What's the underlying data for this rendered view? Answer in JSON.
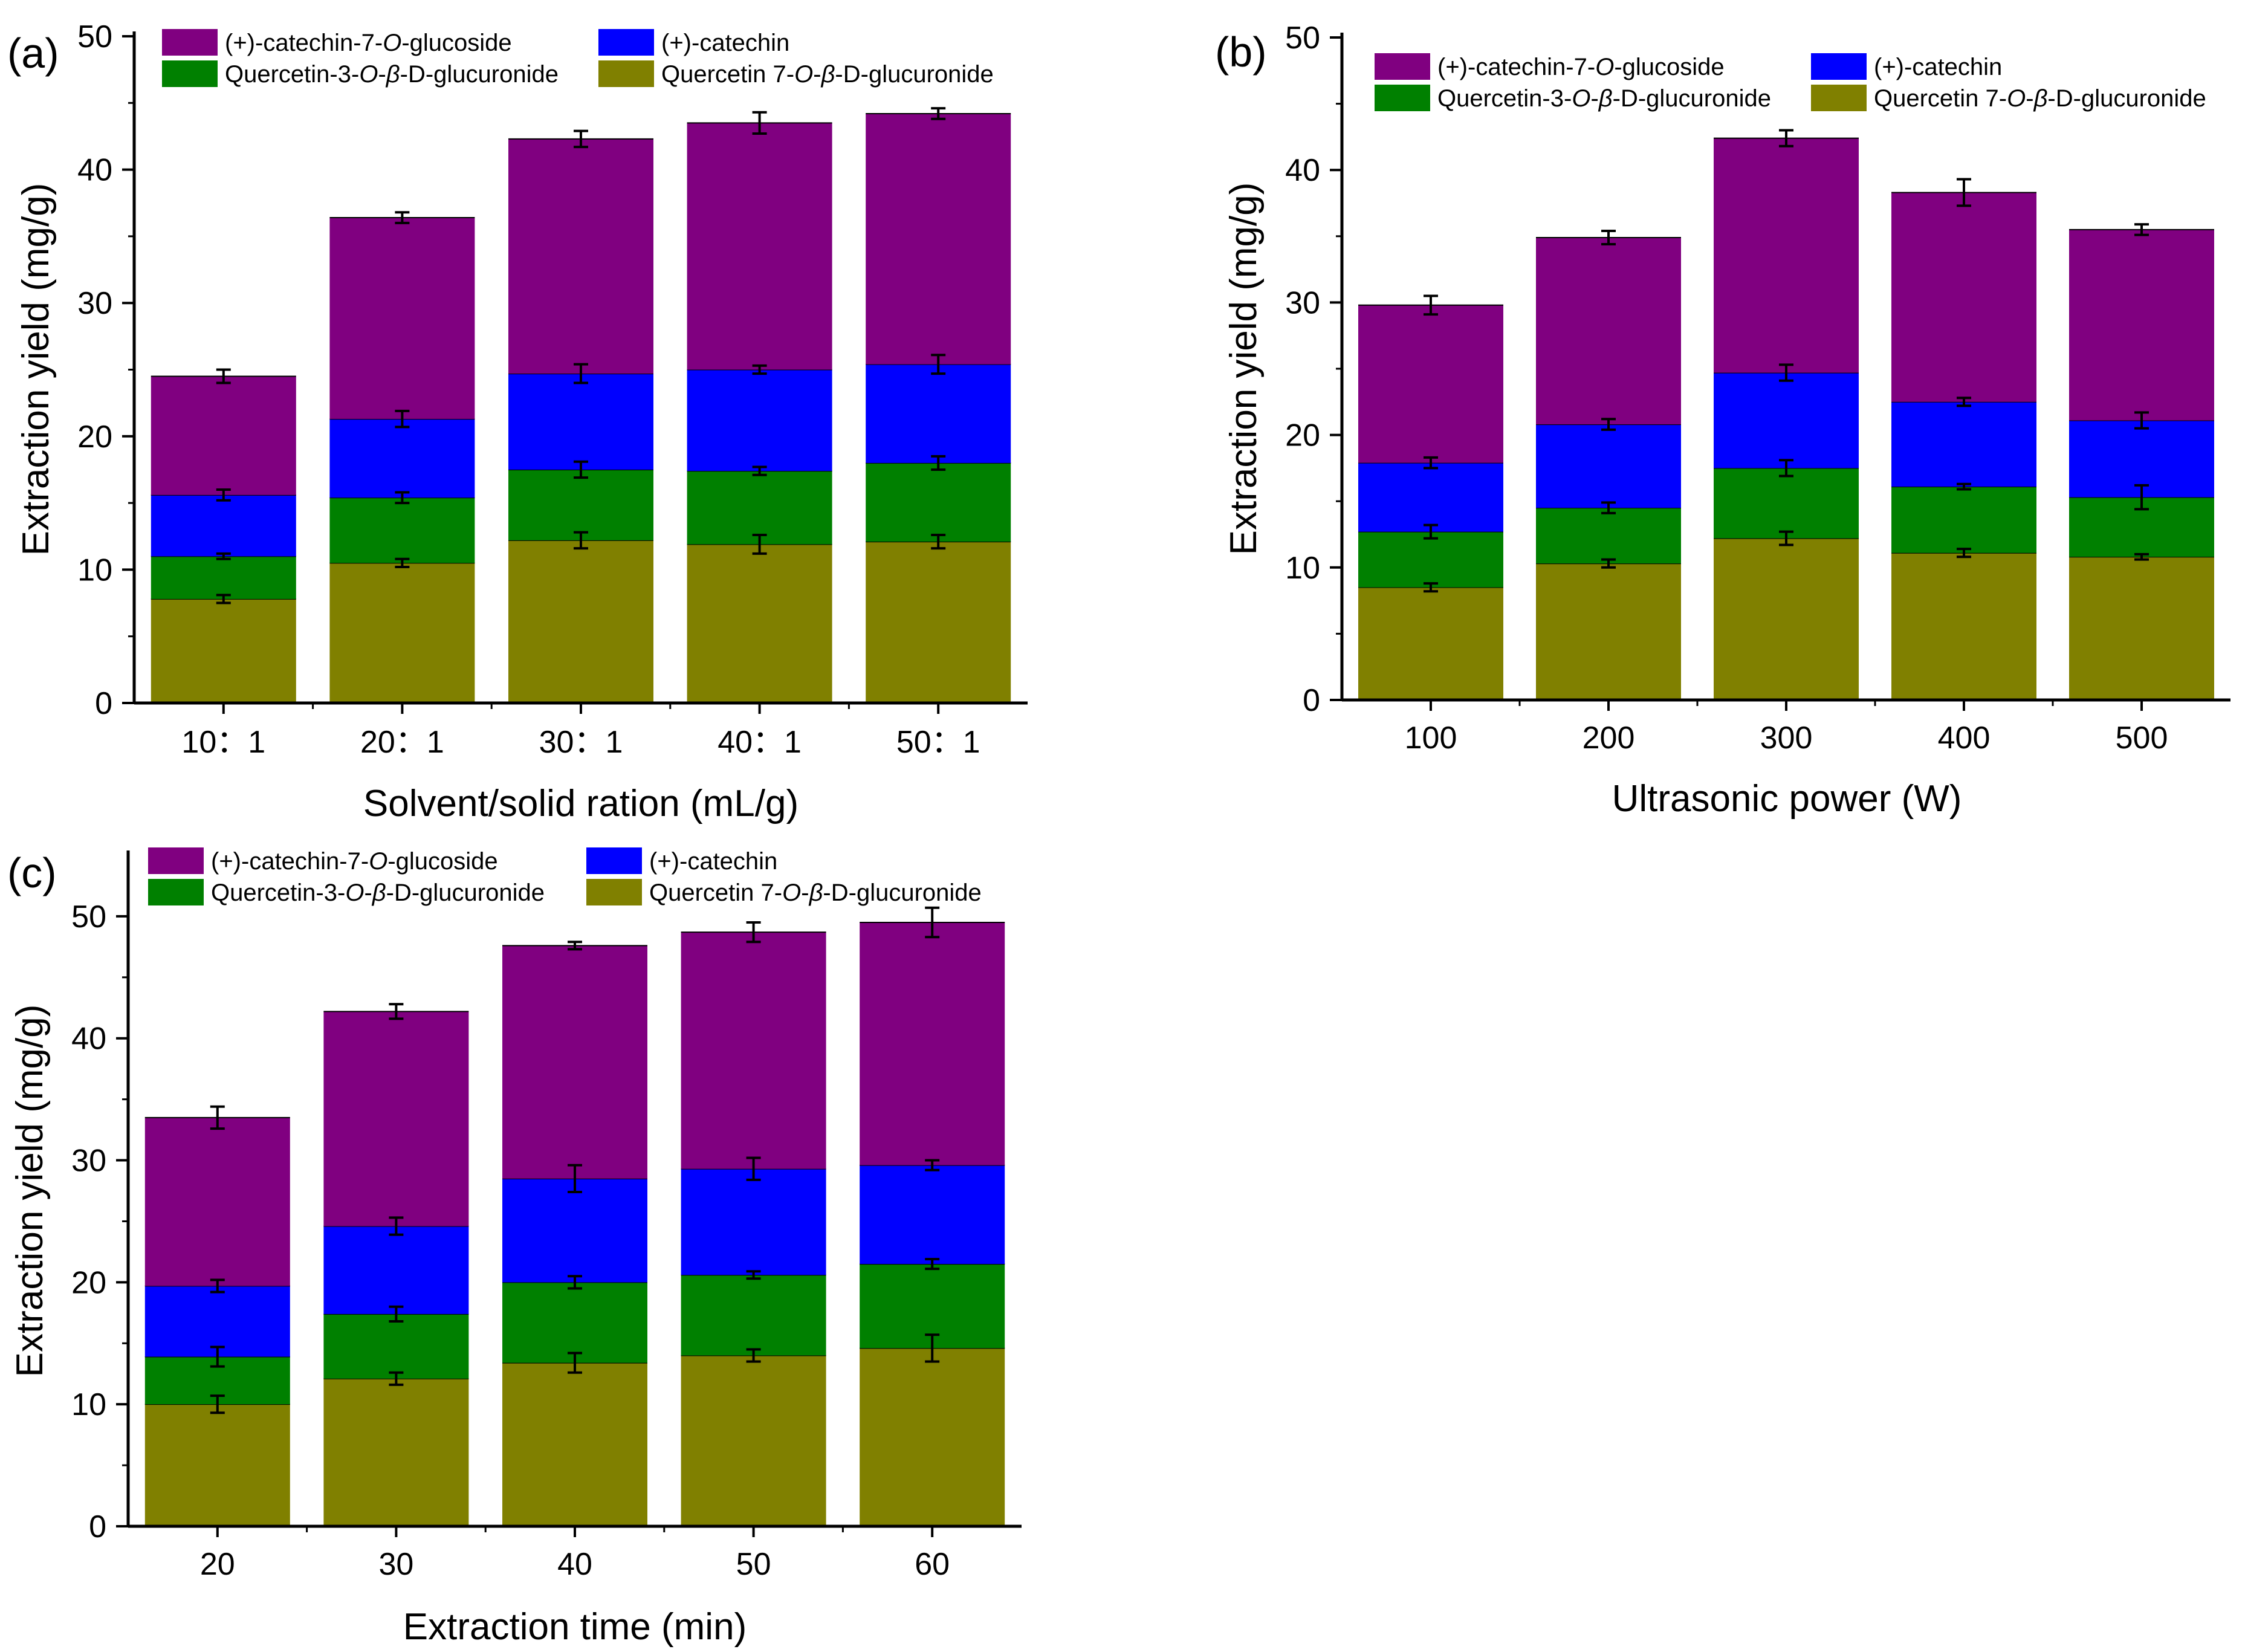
{
  "series_names": [
    "Quercetin 7-O-β-D-glucuronide",
    "Quercetin-3-O-β-D-glucuronide",
    "(+)-catechin",
    "(+)-catechin-7-O-glucoside"
  ],
  "colors": {
    "Quercetin 7-O-β-D-glucuronide": "#808000",
    "Quercetin-3-O-β-D-glucuronide": "#008000",
    "(+)-catechin": "#0000ff",
    "(+)-catechin-7-O-glucoside": "#800080"
  },
  "chart_data": [
    {
      "panel": "(a)",
      "type": "bar",
      "stacked": true,
      "xlabel": "Solvent/solid ration (mL/g)",
      "ylabel": "Extraction yield (mg/g)",
      "ylim": [
        0,
        50
      ],
      "yticks": [
        "0",
        "10",
        "20",
        "30",
        "40",
        "50"
      ],
      "categories": [
        "10：1",
        "20：1",
        "30：1",
        "40：1",
        "50：1"
      ],
      "legend": {
        "col1": [
          "(+)-catechin-7-O-glucoside",
          "Quercetin-3-O-β-D-glucuronide"
        ],
        "col2": [
          "(+)-catechin",
          "Quercetin 7-O-β-D-glucuronide"
        ]
      },
      "series": [
        {
          "name": "Quercetin 7-O-β-D-glucuronide",
          "values": [
            7.8,
            10.5,
            12.2,
            11.9,
            12.1
          ],
          "errors": [
            0.3,
            0.3,
            0.6,
            0.7,
            0.5
          ]
        },
        {
          "name": "Quercetin-3-O-β-D-glucuronide",
          "values": [
            3.2,
            4.9,
            5.3,
            5.5,
            5.9
          ],
          "errors": [
            0.2,
            0.4,
            0.6,
            0.3,
            0.5
          ]
        },
        {
          "name": "(+)-catechin",
          "values": [
            4.6,
            5.9,
            7.2,
            7.6,
            7.4
          ],
          "errors": [
            0.4,
            0.6,
            0.7,
            0.3,
            0.7
          ]
        },
        {
          "name": "(+)-catechin-7-O-glucoside",
          "values": [
            8.9,
            15.1,
            17.6,
            18.5,
            18.8
          ],
          "errors": [
            0.5,
            0.4,
            0.6,
            0.8,
            0.4
          ]
        }
      ]
    },
    {
      "panel": "(b)",
      "type": "bar",
      "stacked": true,
      "xlabel": "Ultrasonic power (W)",
      "ylabel": "Extraction yield (mg/g)",
      "ylim": [
        0,
        50
      ],
      "yticks": [
        "0",
        "10",
        "20",
        "30",
        "40",
        "50"
      ],
      "categories": [
        "100",
        "200",
        "300",
        "400",
        "500"
      ],
      "legend": {
        "col1": [
          "(+)-catechin-7-O-glucoside",
          "Quercetin-3-O-β-D-glucuronide"
        ],
        "col2": [
          "(+)-catechin",
          "Quercetin 7-O-β-D-glucuronide"
        ]
      },
      "series": [
        {
          "name": "Quercetin 7-O-β-D-glucuronide",
          "values": [
            8.5,
            10.3,
            12.2,
            11.1,
            10.8
          ],
          "errors": [
            0.3,
            0.3,
            0.5,
            0.3,
            0.2
          ]
        },
        {
          "name": "Quercetin-3-O-β-D-glucuronide",
          "values": [
            4.2,
            4.2,
            5.3,
            5.0,
            4.5
          ],
          "errors": [
            0.5,
            0.4,
            0.6,
            0.2,
            0.9
          ]
        },
        {
          "name": "(+)-catechin",
          "values": [
            5.2,
            6.3,
            7.2,
            6.4,
            5.8
          ],
          "errors": [
            0.4,
            0.4,
            0.6,
            0.3,
            0.6
          ]
        },
        {
          "name": "(+)-catechin-7-O-glucoside",
          "values": [
            11.9,
            14.1,
            17.7,
            15.8,
            14.4
          ],
          "errors": [
            0.7,
            0.5,
            0.6,
            1.0,
            0.4
          ]
        }
      ]
    },
    {
      "panel": "(c)",
      "type": "bar",
      "stacked": true,
      "xlabel": "Extraction time (min)",
      "ylabel": "Extraction yield (mg/g)",
      "ylim": [
        0,
        55
      ],
      "yticks": [
        "0",
        "10",
        "20",
        "30",
        "40",
        "50"
      ],
      "categories": [
        "20",
        "30",
        "40",
        "50",
        "60"
      ],
      "legend": {
        "col1": [
          "(+)-catechin-7-O-glucoside",
          "Quercetin-3-O-β-D-glucuronide"
        ],
        "col2": [
          "(+)-catechin",
          "Quercetin 7-O-β-D-glucuronide"
        ]
      },
      "series": [
        {
          "name": "Quercetin 7-O-β-D-glucuronide",
          "values": [
            10.0,
            12.1,
            13.4,
            14.0,
            14.6
          ],
          "errors": [
            0.7,
            0.5,
            0.8,
            0.5,
            1.1
          ]
        },
        {
          "name": "Quercetin-3-O-β-D-glucuronide",
          "values": [
            3.9,
            5.3,
            6.6,
            6.6,
            6.9
          ],
          "errors": [
            0.8,
            0.6,
            0.5,
            0.3,
            0.4
          ]
        },
        {
          "name": "(+)-catechin",
          "values": [
            5.8,
            7.2,
            8.5,
            8.7,
            8.1
          ],
          "errors": [
            0.5,
            0.7,
            1.1,
            0.9,
            0.4
          ]
        },
        {
          "name": "(+)-catechin-7-O-glucoside",
          "values": [
            13.8,
            17.6,
            19.1,
            19.4,
            19.9
          ],
          "errors": [
            0.9,
            0.6,
            0.3,
            0.8,
            1.2
          ]
        }
      ]
    }
  ]
}
